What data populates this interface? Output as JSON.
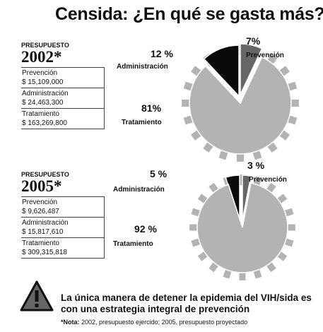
{
  "title": "Censida: ¿En qué se gasta más?",
  "budget_label": "PRESUPUESTO",
  "colors": {
    "prevencion": "#666666",
    "administracion": "#0a0a0a",
    "tratamiento": "#b3b3b3"
  },
  "chart_data": [
    {
      "type": "pie",
      "year": "2002*",
      "slices": [
        {
          "label": "Prevención",
          "value": 7,
          "pct_text": "7%",
          "amount": "$ 15,109,000"
        },
        {
          "label": "Administración",
          "value": 12,
          "pct_text": "12 %",
          "amount": "$ 24,463,300"
        },
        {
          "label": "Tratamiento",
          "value": 81,
          "pct_text": "81%",
          "amount": "$ 163,269,800"
        }
      ]
    },
    {
      "type": "pie",
      "year": "2005*",
      "slices": [
        {
          "label": "Prevención",
          "value": 3,
          "pct_text": "3 %",
          "amount": "$ 9,626,487"
        },
        {
          "label": "Administración",
          "value": 5,
          "pct_text": "5 %",
          "amount": "$ 15,817,610"
        },
        {
          "label": "Tratamiento",
          "value": 92,
          "pct_text": "92 %",
          "amount": "$ 309,315,818"
        }
      ]
    }
  ],
  "message": "La única manera de detener la epidemia del VIH/sida es con una estrategia integral de prevención",
  "note_prefix": "*Nota:",
  "note_text": " 2002, presupuesto ejercido; 2005, presupuesto proyectado"
}
